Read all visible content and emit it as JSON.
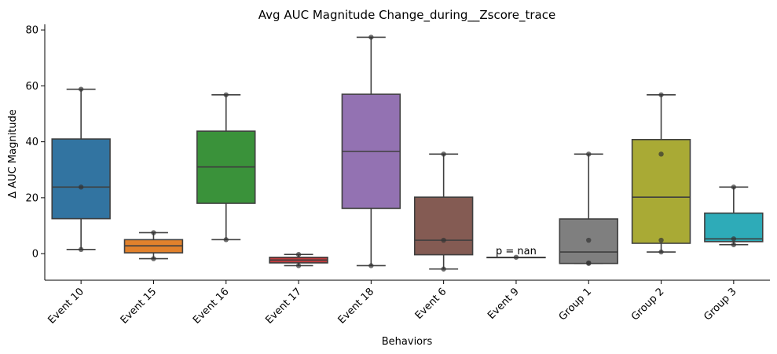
{
  "chart_data": {
    "type": "box",
    "title": "Avg AUC Magnitude Change_during__Zscore_trace",
    "xlabel": "Behaviors",
    "ylabel": "Δ AUC Magnitude",
    "ylim": [
      -9.5,
      82
    ],
    "yticks": [
      0,
      20,
      40,
      60,
      80
    ],
    "categories": [
      "Event 10",
      "Event 15",
      "Event 16",
      "Event 17",
      "Event 18",
      "Event 6",
      "Event 9",
      "Group 1",
      "Group 2",
      "Group 3"
    ],
    "boxes": [
      {
        "category": "Event 10",
        "color": "#3274a1",
        "whisker_low": 1.5,
        "q1": 12.5,
        "median": 23.8,
        "q3": 41.0,
        "whisker_high": 58.8,
        "points": [
          1.5,
          23.8,
          58.8
        ]
      },
      {
        "category": "Event 15",
        "color": "#e1812c",
        "whisker_low": -1.8,
        "q1": 0.3,
        "median": 2.8,
        "q3": 5.0,
        "whisker_high": 7.5,
        "points": [
          -1.8,
          7.5
        ]
      },
      {
        "category": "Event 16",
        "color": "#3a923a",
        "whisker_low": 5.0,
        "q1": 18.0,
        "median": 31.0,
        "q3": 43.8,
        "whisker_high": 56.8,
        "points": [
          5.0,
          56.8
        ]
      },
      {
        "category": "Event 17",
        "color": "#c03d3e",
        "whisker_low": -4.3,
        "q1": -3.3,
        "median": -2.3,
        "q3": -1.3,
        "whisker_high": -0.3,
        "points": [
          -4.3,
          -0.3
        ]
      },
      {
        "category": "Event 18",
        "color": "#9372b2",
        "whisker_low": -4.3,
        "q1": 16.2,
        "median": 36.6,
        "q3": 57.0,
        "whisker_high": 77.4,
        "points": [
          -4.3,
          77.4
        ]
      },
      {
        "category": "Event 6",
        "color": "#845b53",
        "whisker_low": -5.5,
        "q1": -0.4,
        "median": 4.8,
        "q3": 20.2,
        "whisker_high": 35.6,
        "points": [
          -5.5,
          4.8,
          35.6
        ]
      },
      {
        "category": "Event 9",
        "color": "#d684bd",
        "whisker_low": -1.3,
        "q1": -1.3,
        "median": -1.3,
        "q3": -1.3,
        "whisker_high": -1.3,
        "points": [
          -1.3
        ]
      },
      {
        "category": "Group 1",
        "color": "#7f7f7f",
        "whisker_low": -3.5,
        "q1": -3.5,
        "median": 0.6,
        "q3": 12.4,
        "whisker_high": 35.6,
        "points": [
          -3.5,
          -3.3,
          4.8,
          35.6
        ]
      },
      {
        "category": "Group 2",
        "color": "#a9aa35",
        "whisker_low": 0.6,
        "q1": 3.7,
        "median": 20.2,
        "q3": 40.8,
        "whisker_high": 56.8,
        "points": [
          0.6,
          4.8,
          35.6,
          56.8
        ]
      },
      {
        "category": "Group 3",
        "color": "#2eabb8",
        "whisker_low": 3.2,
        "q1": 4.3,
        "median": 5.3,
        "q3": 14.5,
        "whisker_high": 23.8,
        "points": [
          3.2,
          5.3,
          23.8
        ]
      }
    ],
    "annotations": [
      {
        "category": "Event 9",
        "text": "p = nan",
        "y": -0.3
      }
    ],
    "grid": false,
    "legend": "none"
  }
}
